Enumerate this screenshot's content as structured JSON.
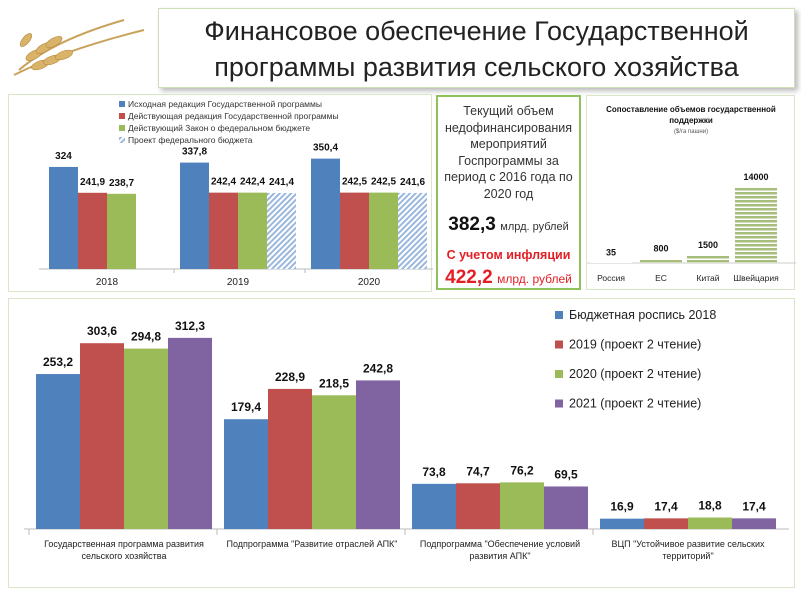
{
  "title": "Финансовое обеспечение Государственной программы развития сельского хозяйства",
  "title_lines": [
    "Финансовое обеспечение Государственной",
    "программы развития сельского хозяйства"
  ],
  "colors": {
    "blue": "#4f81bd",
    "red": "#c0504d",
    "green": "#9bbb59",
    "purple": "#8064a2",
    "hatch": "#9ab7dd",
    "sw_green": "#a6bd7c"
  },
  "info_box": {
    "lines": [
      "Текущий объем",
      "недофинансирования",
      "мероприятий",
      "Госпрограммы за",
      "период с 2016 года по",
      "2020 год"
    ],
    "amount": "382,3",
    "amount_unit": "млрд. рублей",
    "inflation_label": "С учетом инфляции",
    "inflation_amount": "422,2",
    "inflation_unit": "млрд. рублей"
  },
  "chart_data": [
    {
      "type": "bar",
      "title": "",
      "categories": [
        "2018",
        "2019",
        "2020"
      ],
      "series": [
        {
          "name": "Исходная редакция Государственной программы",
          "values": [
            324,
            337.8,
            350.4
          ],
          "labels": [
            "324",
            "337,8",
            "350,4"
          ]
        },
        {
          "name": "Действующая редакция Государственной программы",
          "values": [
            241.9,
            242.4,
            242.5
          ],
          "labels": [
            "241,9",
            "242,4",
            "242,5"
          ]
        },
        {
          "name": "Действующий Закон о федеральном бюджете",
          "values": [
            238.7,
            242.4,
            242.5
          ],
          "labels": [
            "238,7",
            "242,4",
            "242,5"
          ]
        },
        {
          "name": "Проект федерального бюджета",
          "values": [
            null,
            241.4,
            241.6
          ],
          "labels": [
            "",
            "241,4",
            "241,6"
          ]
        }
      ],
      "legend": "top"
    },
    {
      "type": "bar",
      "title": "Сопоставление объемов государственной поддержки",
      "subtitle": "($/га пашни)",
      "title_lines": [
        "Сопоставление объемов государственной",
        "поддержки"
      ],
      "categories": [
        "Россия",
        "ЕС",
        "Китай",
        "Швейцария"
      ],
      "values": [
        35,
        800,
        1500,
        14000
      ],
      "labels": [
        "35",
        "800",
        "1500",
        "14000"
      ]
    },
    {
      "type": "bar",
      "categories": [
        "Государственная программа развития сельского хозяйства",
        "Подпрограмма \"Развитие отраслей АПК\"",
        "Подпрограмма \"Обеспечение условий развития АПК\"",
        "ВЦП \"Устойчивое развитие сельских территорий\""
      ],
      "category_lines": [
        [
          "Государственная программа развития",
          "сельского хозяйства"
        ],
        [
          "Подпрограмма \"Развитие отраслей АПК\""
        ],
        [
          "Подпрограмма \"Обеспечение условий",
          "развития АПК\""
        ],
        [
          "ВЦП \"Устойчивое развитие сельских",
          "территорий\""
        ]
      ],
      "series": [
        {
          "name": "Бюджетная роспись 2018",
          "values": [
            253.2,
            179.4,
            73.8,
            16.9
          ],
          "labels": [
            "253,2",
            "179,4",
            "73,8",
            "16,9"
          ]
        },
        {
          "name": "2019 (проект 2 чтение)",
          "values": [
            303.6,
            228.9,
            74.7,
            17.4
          ],
          "labels": [
            "303,6",
            "228,9",
            "74,7",
            "17,4"
          ]
        },
        {
          "name": "2020 (проект 2 чтение)",
          "values": [
            294.8,
            218.5,
            76.2,
            18.8
          ],
          "labels": [
            "294,8",
            "218,5",
            "76,2",
            "18,8"
          ]
        },
        {
          "name": "2021 (проект 2 чтение)",
          "values": [
            312.3,
            242.8,
            69.5,
            17.4
          ],
          "labels": [
            "312,3",
            "242,8",
            "69,5",
            "17,4"
          ]
        }
      ],
      "legend": "right"
    }
  ]
}
